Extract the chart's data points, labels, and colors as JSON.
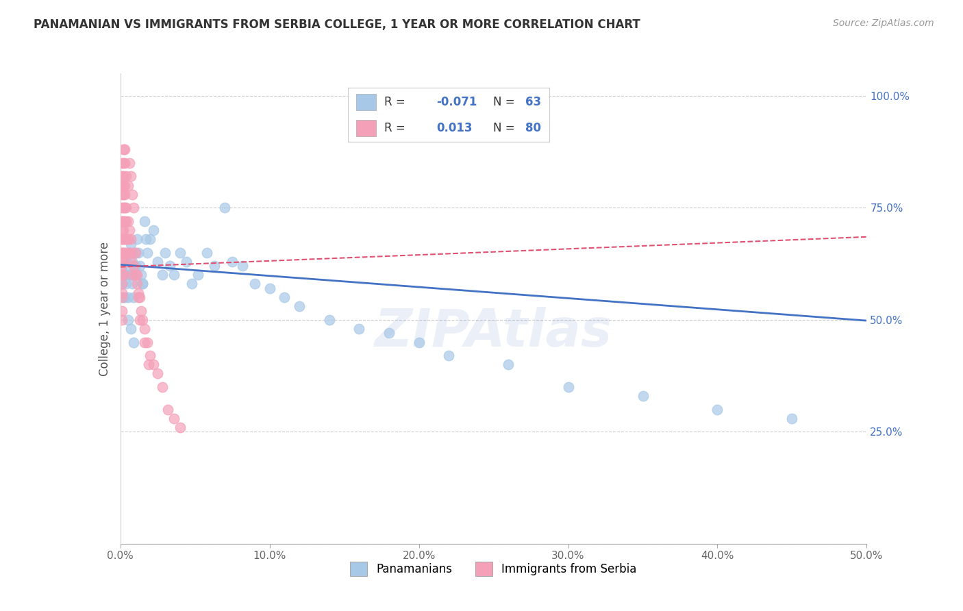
{
  "title": "PANAMANIAN VS IMMIGRANTS FROM SERBIA COLLEGE, 1 YEAR OR MORE CORRELATION CHART",
  "source": "Source: ZipAtlas.com",
  "ylabel": "College, 1 year or more",
  "xlim": [
    0.0,
    0.5
  ],
  "ylim": [
    0.0,
    1.05
  ],
  "xticks": [
    0.0,
    0.1,
    0.2,
    0.3,
    0.4,
    0.5
  ],
  "xticklabels": [
    "0.0%",
    "10.0%",
    "20.0%",
    "30.0%",
    "40.0%",
    "50.0%"
  ],
  "yticks_right": [
    0.25,
    0.5,
    0.75,
    1.0
  ],
  "yticklabels_right": [
    "25.0%",
    "50.0%",
    "75.0%",
    "100.0%"
  ],
  "blue_color": "#A8C8E8",
  "pink_color": "#F4A0B8",
  "blue_line_color": "#4472C4",
  "pink_line_color": "#E05070",
  "R_blue": -0.071,
  "N_blue": 63,
  "R_pink": 0.013,
  "N_pink": 80,
  "legend_labels": [
    "Panamanians",
    "Immigrants from Serbia"
  ],
  "watermark": "ZIPAtlas",
  "blue_line_x0": 0.0,
  "blue_line_y0": 0.623,
  "blue_line_x1": 0.5,
  "blue_line_y1": 0.498,
  "pink_line_x0": 0.0,
  "pink_line_y0": 0.618,
  "pink_line_x1": 0.5,
  "pink_line_y1": 0.685,
  "blue_scatter_x": [
    0.001,
    0.001,
    0.002,
    0.002,
    0.003,
    0.003,
    0.004,
    0.004,
    0.005,
    0.005,
    0.006,
    0.006,
    0.007,
    0.007,
    0.008,
    0.008,
    0.009,
    0.009,
    0.01,
    0.01,
    0.011,
    0.012,
    0.013,
    0.014,
    0.015,
    0.016,
    0.017,
    0.018,
    0.02,
    0.022,
    0.025,
    0.028,
    0.03,
    0.033,
    0.036,
    0.04,
    0.044,
    0.048,
    0.052,
    0.058,
    0.063,
    0.07,
    0.075,
    0.082,
    0.09,
    0.1,
    0.11,
    0.12,
    0.14,
    0.16,
    0.18,
    0.2,
    0.22,
    0.26,
    0.3,
    0.35,
    0.4,
    0.45,
    0.003,
    0.005,
    0.007,
    0.009,
    0.015
  ],
  "blue_scatter_y": [
    0.62,
    0.58,
    0.6,
    0.55,
    0.65,
    0.6,
    0.58,
    0.63,
    0.6,
    0.55,
    0.65,
    0.62,
    0.67,
    0.6,
    0.58,
    0.63,
    0.6,
    0.55,
    0.65,
    0.62,
    0.68,
    0.65,
    0.62,
    0.6,
    0.58,
    0.72,
    0.68,
    0.65,
    0.68,
    0.7,
    0.63,
    0.6,
    0.65,
    0.62,
    0.6,
    0.65,
    0.63,
    0.58,
    0.6,
    0.65,
    0.62,
    0.75,
    0.63,
    0.62,
    0.58,
    0.57,
    0.55,
    0.53,
    0.5,
    0.48,
    0.47,
    0.45,
    0.42,
    0.4,
    0.35,
    0.33,
    0.3,
    0.28,
    0.55,
    0.5,
    0.48,
    0.45,
    0.58
  ],
  "pink_scatter_x": [
    0.001,
    0.001,
    0.001,
    0.001,
    0.001,
    0.001,
    0.001,
    0.001,
    0.001,
    0.001,
    0.001,
    0.001,
    0.002,
    0.002,
    0.002,
    0.002,
    0.002,
    0.002,
    0.002,
    0.002,
    0.003,
    0.003,
    0.003,
    0.003,
    0.003,
    0.004,
    0.004,
    0.004,
    0.004,
    0.005,
    0.005,
    0.005,
    0.006,
    0.006,
    0.007,
    0.007,
    0.008,
    0.008,
    0.009,
    0.01,
    0.011,
    0.012,
    0.013,
    0.014,
    0.015,
    0.016,
    0.018,
    0.02,
    0.022,
    0.025,
    0.028,
    0.032,
    0.036,
    0.04,
    0.001,
    0.001,
    0.001,
    0.001,
    0.001,
    0.001,
    0.001,
    0.001,
    0.002,
    0.002,
    0.002,
    0.002,
    0.003,
    0.003,
    0.004,
    0.005,
    0.006,
    0.007,
    0.008,
    0.009,
    0.01,
    0.011,
    0.012,
    0.013,
    0.016,
    0.019
  ],
  "pink_scatter_y": [
    0.75,
    0.72,
    0.7,
    0.68,
    0.65,
    0.63,
    0.6,
    0.58,
    0.56,
    0.55,
    0.52,
    0.5,
    0.78,
    0.75,
    0.72,
    0.7,
    0.68,
    0.65,
    0.63,
    0.6,
    0.8,
    0.78,
    0.75,
    0.72,
    0.68,
    0.75,
    0.72,
    0.68,
    0.65,
    0.72,
    0.68,
    0.65,
    0.7,
    0.65,
    0.68,
    0.63,
    0.65,
    0.6,
    0.62,
    0.6,
    0.58,
    0.56,
    0.55,
    0.52,
    0.5,
    0.48,
    0.45,
    0.42,
    0.4,
    0.38,
    0.35,
    0.3,
    0.28,
    0.26,
    0.85,
    0.82,
    0.8,
    0.78,
    0.72,
    0.68,
    0.65,
    0.62,
    0.88,
    0.85,
    0.82,
    0.8,
    0.88,
    0.85,
    0.82,
    0.8,
    0.85,
    0.82,
    0.78,
    0.75,
    0.65,
    0.6,
    0.55,
    0.5,
    0.45,
    0.4
  ]
}
